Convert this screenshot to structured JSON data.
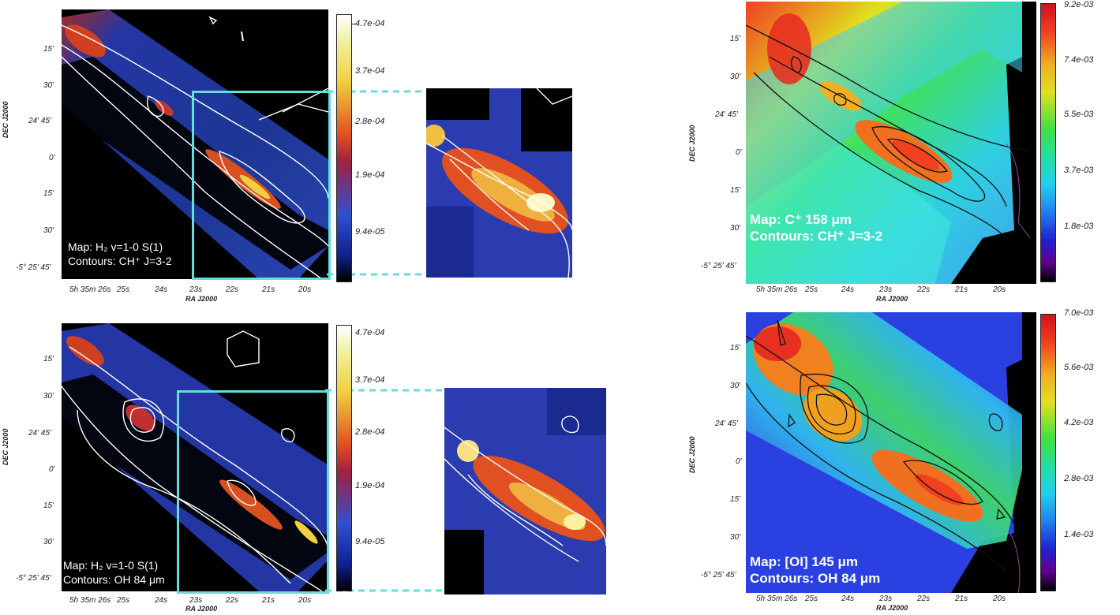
{
  "panels": [
    {
      "id": "tl",
      "legend": [
        "Map: H₂ v=1-0 S(1)",
        "Contours: CH⁺ J=3-2"
      ]
    },
    {
      "id": "bl",
      "legend": [
        "Map: H₂ v=1-0 S(1)",
        "Contours: OH 84 μm"
      ]
    },
    {
      "id": "tr",
      "legend": [
        "Map: C⁺ 158 μm",
        "Contours: CH⁺ J=3-2"
      ]
    },
    {
      "id": "br",
      "legend": [
        "Map: [OI] 145 μm",
        "Contours: OH 84 μm"
      ]
    }
  ],
  "axes": {
    "ylabel": "DEC J2000",
    "xlabel": "RA J2000",
    "dec_ticks": [
      "15'",
      "30'",
      "24' 45'",
      "0'",
      "15'",
      "30'",
      "-5° 25' 45'"
    ],
    "ra_ticks": [
      "5h 35m 26s",
      "25s",
      "24s",
      "23s",
      "22s",
      "21s",
      "20s"
    ]
  },
  "colorbars": {
    "left": [
      "4.7e-04",
      "3.7e-04",
      "2.8e-04",
      "1.9e-04",
      "9.4e-05"
    ],
    "tr": [
      "9.2e-03",
      "7.4e-03",
      "5.5e-03",
      "3.7e-03",
      "1.8e-03"
    ],
    "br": [
      "7.0e-03",
      "5.6e-03",
      "4.2e-03",
      "2.8e-03",
      "1.4e-03"
    ]
  },
  "colors": {
    "zoom_box": "#66dcdc",
    "contour_white": "#ffffff",
    "contour_black": "#111111"
  }
}
